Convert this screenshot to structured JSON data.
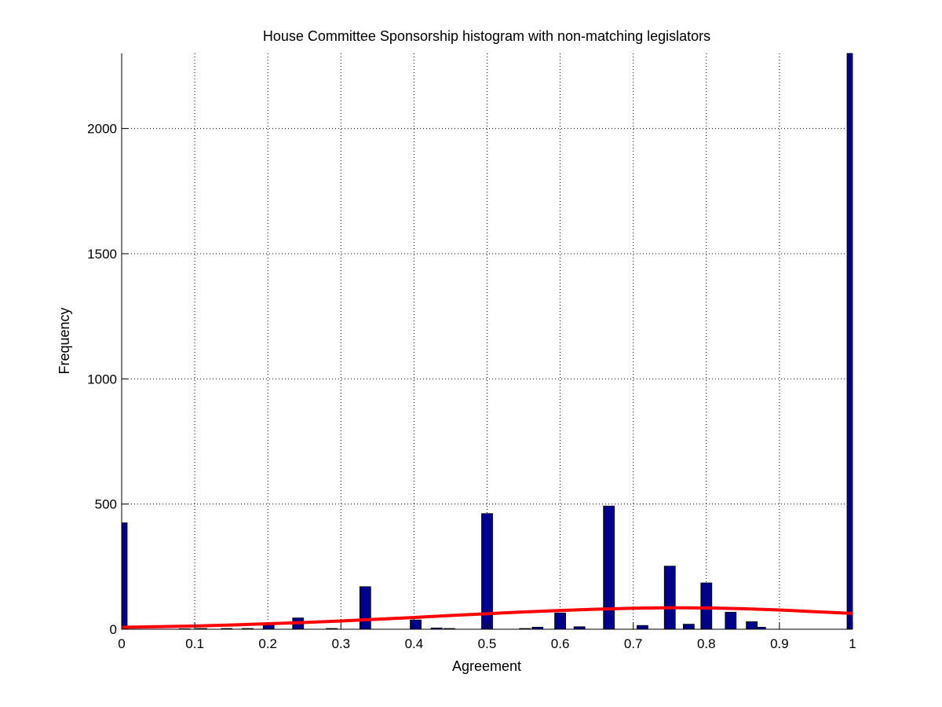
{
  "chart_data": {
    "type": "bar",
    "title": "House Committee Sponsorship histogram with non-matching legislators",
    "xlabel": "Agreement",
    "ylabel": "Frequency",
    "xlim": [
      0,
      1
    ],
    "ylim": [
      0,
      2300
    ],
    "xticks": [
      0,
      0.1,
      0.2,
      0.3,
      0.4,
      0.5,
      0.6,
      0.7,
      0.8,
      0.9,
      1
    ],
    "xtick_labels": [
      "0",
      "0.1",
      "0.2",
      "0.3",
      "0.4",
      "0.5",
      "0.6",
      "0.7",
      "0.8",
      "0.9",
      "1"
    ],
    "yticks": [
      0,
      500,
      1000,
      1500,
      2000
    ],
    "ytick_labels": [
      "0",
      "500",
      "1000",
      "1500",
      "2000"
    ],
    "grid": true,
    "bar_color": "#00008f",
    "bar_width": 0.015,
    "bars": [
      {
        "x": 0.0,
        "y": 425
      },
      {
        "x": 0.0862,
        "y": 2
      },
      {
        "x": 0.1092,
        "y": 3
      },
      {
        "x": 0.1437,
        "y": 3
      },
      {
        "x": 0.1724,
        "y": 3
      },
      {
        "x": 0.2011,
        "y": 20
      },
      {
        "x": 0.2414,
        "y": 45
      },
      {
        "x": 0.2874,
        "y": 3
      },
      {
        "x": 0.3333,
        "y": 170
      },
      {
        "x": 0.4023,
        "y": 37
      },
      {
        "x": 0.431,
        "y": 5
      },
      {
        "x": 0.4483,
        "y": 3
      },
      {
        "x": 0.5,
        "y": 462
      },
      {
        "x": 0.5517,
        "y": 3
      },
      {
        "x": 0.569,
        "y": 8
      },
      {
        "x": 0.6,
        "y": 65
      },
      {
        "x": 0.6264,
        "y": 10
      },
      {
        "x": 0.6667,
        "y": 492
      },
      {
        "x": 0.7126,
        "y": 15
      },
      {
        "x": 0.75,
        "y": 252
      },
      {
        "x": 0.7759,
        "y": 20
      },
      {
        "x": 0.8,
        "y": 185
      },
      {
        "x": 0.8333,
        "y": 68
      },
      {
        "x": 0.8621,
        "y": 30
      },
      {
        "x": 0.8736,
        "y": 8
      },
      {
        "x": 1.0,
        "y": 2300
      }
    ],
    "fit_curve": {
      "color": "#ff0000",
      "x": [
        0,
        0.05,
        0.1,
        0.15,
        0.2,
        0.25,
        0.3,
        0.35,
        0.4,
        0.45,
        0.5,
        0.55,
        0.6,
        0.65,
        0.7,
        0.75,
        0.8,
        0.85,
        0.9,
        0.95,
        1.0
      ],
      "y": [
        8,
        10,
        13,
        17,
        22,
        27,
        33,
        40,
        47,
        55,
        62,
        69,
        75,
        80,
        84,
        86,
        85,
        82,
        77,
        70,
        63
      ]
    }
  }
}
